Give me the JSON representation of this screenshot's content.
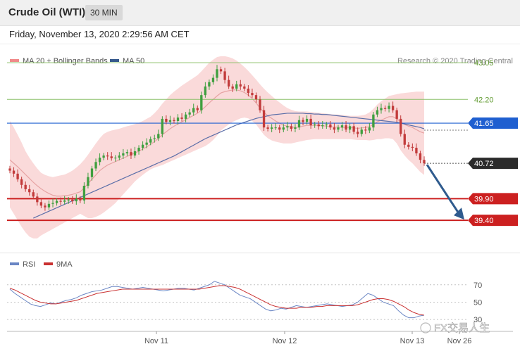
{
  "header": {
    "title": "Crude Oil (WTI)",
    "interval": "30 MIN"
  },
  "subheader": {
    "datetime": "Friday, November 13, 2020 2:29:56 AM CET"
  },
  "legend": {
    "main": [
      {
        "label": "MA 20 + Bollinger Bands",
        "color": "#f08a8a"
      },
      {
        "label": "MA 50",
        "color": "#36598c"
      }
    ],
    "rsi": [
      {
        "label": "RSI",
        "color": "#6a86c4"
      },
      {
        "label": "9MA",
        "color": "#c93030"
      }
    ]
  },
  "copyright": "Research © 2020 Trading Central",
  "watermark": "FX交易人生",
  "colors": {
    "bullish": "#3f9f3f",
    "bearish": "#c23b3b",
    "support": "#cc2020",
    "pivot": "#1f5fd0",
    "resistance": "#8cc06a",
    "band": "#f9d4d4",
    "ma20": "#e6a3a3",
    "ma50": "#5a6ea8",
    "current_price_bg": "#2b2b2b",
    "arrow": "#2f5b8e"
  },
  "chart_data": [
    {
      "type": "candlestick",
      "title": "Crude Oil (WTI)",
      "interval": "30 MIN",
      "ylim": [
        38.75,
        43.15
      ],
      "x_ticks": [
        "Nov 11",
        "Nov 12",
        "Nov 13",
        "Nov 26"
      ],
      "levels": [
        {
          "label": "43.05",
          "value": 43.05,
          "kind": "resistance"
        },
        {
          "label": "42.20",
          "value": 42.2,
          "kind": "resistance"
        },
        {
          "label": "41.65",
          "value": 41.65,
          "kind": "pivot"
        },
        {
          "label": "40.72",
          "value": 40.72,
          "kind": "current"
        },
        {
          "label": "39.90",
          "value": 39.9,
          "kind": "support"
        },
        {
          "label": "39.40",
          "value": 39.4,
          "kind": "support"
        }
      ],
      "close": [
        40.55,
        40.48,
        40.35,
        40.22,
        40.12,
        40.05,
        39.95,
        39.82,
        39.74,
        39.7,
        39.78,
        39.8,
        39.85,
        39.83,
        39.86,
        39.88,
        39.84,
        39.9,
        39.86,
        40.2,
        40.4,
        40.6,
        40.75,
        40.85,
        40.9,
        40.88,
        40.84,
        40.85,
        40.9,
        40.95,
        40.98,
        40.9,
        41.0,
        41.08,
        41.15,
        41.2,
        41.28,
        41.3,
        41.4,
        41.75,
        41.68,
        41.72,
        41.7,
        41.78,
        41.75,
        41.85,
        41.9,
        42.0,
        41.95,
        42.3,
        42.5,
        42.6,
        42.7,
        42.9,
        42.85,
        42.65,
        42.5,
        42.45,
        42.55,
        42.5,
        42.45,
        42.35,
        42.3,
        42.2,
        41.95,
        41.55,
        41.52,
        41.55,
        41.55,
        41.5,
        41.55,
        41.58,
        41.52,
        41.55,
        41.72,
        41.68,
        41.75,
        41.6,
        41.62,
        41.58,
        41.6,
        41.62,
        41.55,
        41.5,
        41.55,
        41.6,
        41.5,
        41.58,
        41.45,
        41.4,
        41.5,
        41.48,
        41.55,
        41.85,
        41.95,
        42.0,
        41.98,
        42.05,
        41.95,
        41.75,
        41.4,
        41.15,
        41.1,
        41.08,
        40.95,
        40.8,
        40.72
      ],
      "ma20": [
        40.8,
        40.72,
        40.64,
        40.55,
        40.46,
        40.37,
        40.28,
        40.2,
        40.13,
        40.07,
        40.02,
        39.98,
        39.96,
        39.96,
        39.97,
        39.98,
        40.0,
        40.03,
        40.06,
        40.15,
        40.25,
        40.35,
        40.45,
        40.55,
        40.62,
        40.68,
        40.72,
        40.76,
        40.8,
        40.84,
        40.88,
        40.92,
        40.96,
        41.0,
        41.05,
        41.1,
        41.16,
        41.22,
        41.3,
        41.38,
        41.45,
        41.52,
        41.58,
        41.63,
        41.68,
        41.73,
        41.78,
        41.83,
        41.88,
        41.95,
        42.03,
        42.12,
        42.2,
        42.28,
        42.35,
        42.38,
        42.4,
        42.42,
        42.42,
        42.4,
        42.36,
        42.3,
        42.22,
        42.12,
        42.0,
        41.9,
        41.82,
        41.76,
        41.7,
        41.65,
        41.6,
        41.58,
        41.56,
        41.55,
        41.56,
        41.58,
        41.6,
        41.6,
        41.6,
        41.6,
        41.59,
        41.58,
        41.57,
        41.56,
        41.56,
        41.55,
        41.55,
        41.55,
        41.54,
        41.53,
        41.54,
        41.55,
        41.57,
        41.62,
        41.68,
        41.72,
        41.76,
        41.8,
        41.8,
        41.75,
        41.68,
        41.62,
        41.58,
        41.55,
        41.5,
        41.45,
        41.42
      ],
      "bb_upper": [
        41.7,
        41.55,
        41.38,
        41.2,
        41.0,
        40.85,
        40.72,
        40.6,
        40.5,
        40.45,
        40.42,
        40.4,
        40.42,
        40.44,
        40.46,
        40.5,
        40.55,
        40.62,
        40.7,
        40.8,
        40.92,
        41.05,
        41.18,
        41.3,
        41.4,
        41.45,
        41.48,
        41.5,
        41.52,
        41.55,
        41.58,
        41.6,
        41.63,
        41.66,
        41.7,
        41.75,
        41.8,
        41.88,
        41.98,
        42.1,
        42.2,
        42.3,
        42.38,
        42.45,
        42.52,
        42.58,
        42.64,
        42.7,
        42.76,
        42.85,
        42.95,
        43.05,
        43.12,
        43.18,
        43.2,
        43.2,
        43.18,
        43.15,
        43.1,
        43.03,
        42.95,
        42.86,
        42.76,
        42.66,
        42.55,
        42.45,
        42.36,
        42.28,
        42.2,
        42.13,
        42.06,
        42.0,
        41.96,
        41.93,
        41.92,
        41.92,
        41.92,
        41.91,
        41.9,
        41.89,
        41.88,
        41.87,
        41.86,
        41.85,
        41.85,
        41.84,
        41.83,
        41.82,
        41.82,
        41.82,
        41.83,
        41.85,
        41.9,
        41.98,
        42.08,
        42.16,
        42.22,
        42.28,
        42.3,
        42.32,
        42.34,
        42.35,
        42.36,
        42.37,
        42.38,
        42.38,
        42.38
      ],
      "bb_lower": [
        39.7,
        39.55,
        39.4,
        39.25,
        39.12,
        39.02,
        38.98,
        38.98,
        39.05,
        39.1,
        39.15,
        39.2,
        39.25,
        39.3,
        39.35,
        39.4,
        39.45,
        39.5,
        39.55,
        39.5,
        39.45,
        39.45,
        39.48,
        39.52,
        39.58,
        39.65,
        39.72,
        39.8,
        39.9,
        40.0,
        40.1,
        40.2,
        40.3,
        40.38,
        40.45,
        40.52,
        40.58,
        40.62,
        40.65,
        40.68,
        40.72,
        40.76,
        40.8,
        40.84,
        40.88,
        40.92,
        40.96,
        41.0,
        41.04,
        41.08,
        41.12,
        41.18,
        41.26,
        41.36,
        41.48,
        41.55,
        41.62,
        41.68,
        41.72,
        41.76,
        41.78,
        41.76,
        41.7,
        41.62,
        41.5,
        41.38,
        41.3,
        41.25,
        41.22,
        41.2,
        41.18,
        41.18,
        41.18,
        41.2,
        41.22,
        41.24,
        41.26,
        41.27,
        41.28,
        41.28,
        41.28,
        41.28,
        41.28,
        41.28,
        41.28,
        41.28,
        41.28,
        41.28,
        41.27,
        41.26,
        41.26,
        41.26,
        41.25,
        41.26,
        41.28,
        41.28,
        41.3,
        41.3,
        41.28,
        41.18,
        41.02,
        40.9,
        40.8,
        40.72,
        40.62,
        40.52,
        40.45
      ],
      "ma50": [
        null,
        null,
        null,
        null,
        null,
        null,
        39.45,
        39.49,
        39.53,
        39.57,
        39.61,
        39.65,
        39.69,
        39.73,
        39.77,
        39.81,
        39.85,
        39.89,
        39.93,
        39.97,
        40.01,
        40.05,
        40.09,
        40.13,
        40.17,
        40.21,
        40.25,
        40.29,
        40.33,
        40.37,
        40.41,
        40.45,
        40.49,
        40.53,
        40.57,
        40.61,
        40.65,
        40.69,
        40.73,
        40.77,
        40.81,
        40.85,
        40.89,
        40.94,
        40.99,
        41.04,
        41.09,
        41.14,
        41.19,
        41.24,
        41.29,
        41.33,
        41.37,
        41.41,
        41.45,
        41.49,
        41.53,
        41.57,
        41.61,
        41.64,
        41.67,
        41.7,
        41.73,
        41.76,
        41.78,
        41.8,
        41.82,
        41.84,
        41.85,
        41.86,
        41.87,
        41.88,
        41.88,
        41.88,
        41.88,
        41.88,
        41.87,
        41.87,
        41.86,
        41.86,
        41.85,
        41.85,
        41.84,
        41.83,
        41.82,
        41.81,
        41.8,
        41.79,
        41.78,
        41.77,
        41.76,
        41.75,
        41.74,
        41.73,
        41.72,
        41.71,
        41.7,
        41.69,
        41.68,
        41.67,
        41.65,
        41.63,
        41.61,
        41.59,
        41.57,
        41.55,
        41.52
      ]
    },
    {
      "type": "line",
      "title": "RSI",
      "ylim": [
        22,
        82
      ],
      "y_ticks": [
        "70",
        "50",
        "30"
      ],
      "series": [
        {
          "name": "RSI",
          "values": [
            65,
            60,
            56,
            52,
            48,
            46,
            45,
            47,
            49,
            48,
            50,
            52,
            53,
            55,
            58,
            60,
            62,
            63,
            64,
            66,
            68,
            68,
            67,
            66,
            65,
            66,
            67,
            66,
            65,
            64,
            63,
            64,
            65,
            66,
            66,
            65,
            64,
            66,
            68,
            70,
            74,
            72,
            70,
            66,
            62,
            58,
            56,
            54,
            50,
            46,
            42,
            40,
            41,
            43,
            42,
            44,
            46,
            45,
            44,
            45,
            46,
            47,
            48,
            47,
            46,
            45,
            46,
            47,
            50,
            55,
            60,
            58,
            54,
            50,
            48,
            46,
            40,
            35,
            32,
            32,
            34,
            35
          ]
        },
        {
          "name": "9MA",
          "values": [
            66,
            64,
            61,
            58,
            55,
            52,
            50,
            49,
            48,
            48,
            49,
            50,
            51,
            52,
            54,
            56,
            58,
            60,
            61,
            62,
            63,
            64,
            65,
            65,
            65,
            65,
            65,
            65,
            65,
            65,
            65,
            65,
            65,
            65,
            65,
            65,
            65,
            65,
            66,
            67,
            68,
            69,
            69,
            68,
            67,
            65,
            62,
            59,
            56,
            53,
            50,
            47,
            45,
            44,
            43,
            43,
            43,
            44,
            44,
            44,
            45,
            45,
            46,
            46,
            46,
            46,
            46,
            46,
            47,
            49,
            51,
            53,
            54,
            54,
            53,
            51,
            48,
            45,
            41,
            38,
            36,
            35
          ]
        }
      ]
    }
  ]
}
